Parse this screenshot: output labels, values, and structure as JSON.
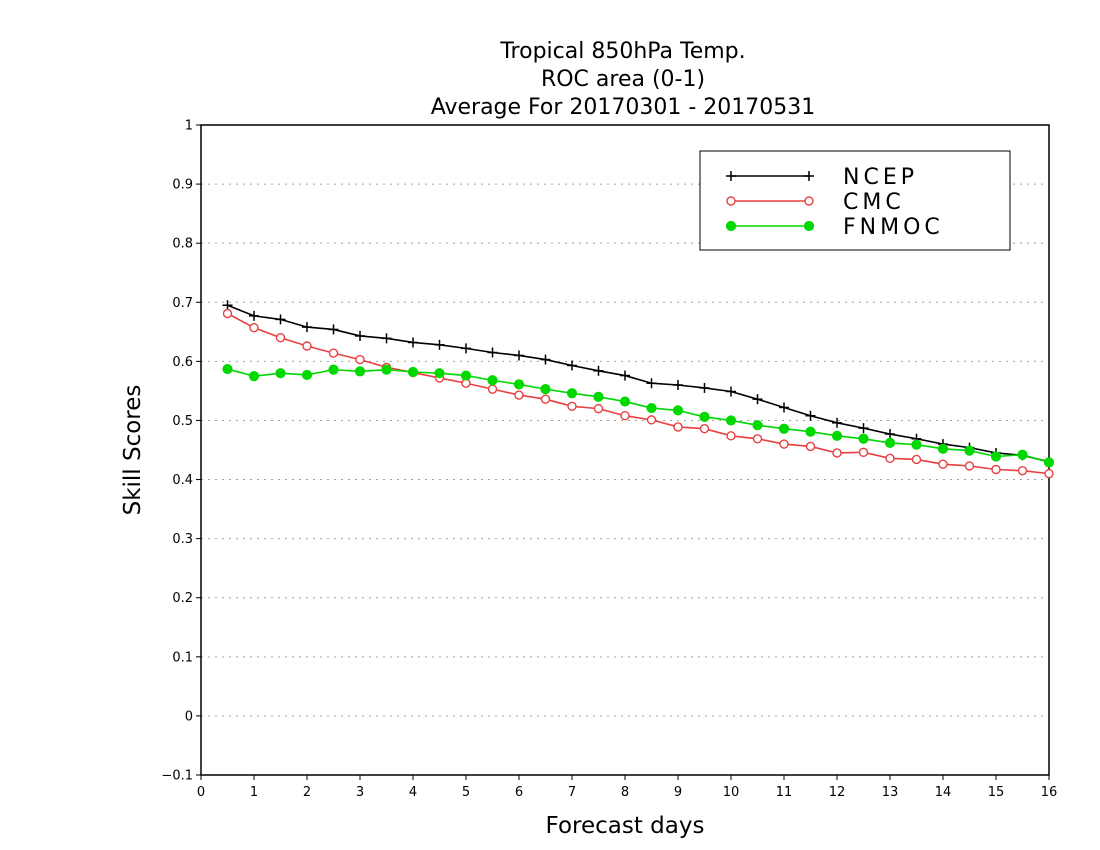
{
  "chart_data": {
    "type": "line",
    "title_lines": [
      "Tropical 850hPa Temp.",
      "ROC area (0-1)",
      "Average For 20170301 - 20170531"
    ],
    "xlabel": "Forecast days",
    "ylabel": "Skill Scores",
    "xlim": [
      0,
      16
    ],
    "ylim": [
      -0.1,
      1
    ],
    "x_ticks": [
      "0",
      "1",
      "2",
      "3",
      "4",
      "5",
      "6",
      "7",
      "8",
      "9",
      "10",
      "11",
      "12",
      "13",
      "14",
      "15",
      "16"
    ],
    "y_ticks": [
      "−0.1",
      "0",
      "0.1",
      "0.2",
      "0.3",
      "0.4",
      "0.5",
      "0.6",
      "0.7",
      "0.8",
      "0.9",
      "1"
    ],
    "y_tick_values": [
      -0.1,
      0,
      0.1,
      0.2,
      0.3,
      0.4,
      0.5,
      0.6,
      0.7,
      0.8,
      0.9,
      1
    ],
    "grid": "horizontal dotted",
    "legend_position": "top-right",
    "x": [
      0.5,
      1,
      1.5,
      2,
      2.5,
      3,
      3.5,
      4,
      4.5,
      5,
      5.5,
      6,
      6.5,
      7,
      7.5,
      8,
      8.5,
      9,
      9.5,
      10,
      10.5,
      11,
      11.5,
      12,
      12.5,
      13,
      13.5,
      14,
      14.5,
      15,
      15.5,
      16
    ],
    "series": [
      {
        "name": "NCEP",
        "color": "#000000",
        "marker": "plus",
        "values": [
          0.695,
          0.677,
          0.671,
          0.658,
          0.654,
          0.643,
          0.639,
          0.632,
          0.628,
          0.622,
          0.615,
          0.61,
          0.603,
          0.593,
          0.584,
          0.576,
          0.563,
          0.56,
          0.555,
          0.549,
          0.536,
          0.522,
          0.508,
          0.496,
          0.487,
          0.477,
          0.469,
          0.46,
          0.454,
          0.445,
          0.441,
          0.43
        ]
      },
      {
        "name": "CMC",
        "color": "#e84040",
        "marker": "open-circle",
        "values": [
          0.681,
          0.657,
          0.64,
          0.626,
          0.614,
          0.603,
          0.59,
          0.581,
          0.572,
          0.563,
          0.553,
          0.543,
          0.536,
          0.524,
          0.52,
          0.508,
          0.501,
          0.489,
          0.486,
          0.474,
          0.469,
          0.46,
          0.456,
          0.445,
          0.446,
          0.436,
          0.434,
          0.426,
          0.423,
          0.417,
          0.415,
          0.41
        ]
      },
      {
        "name": "FNMOC",
        "color": "#00d800",
        "marker": "filled-circle",
        "values": [
          0.587,
          0.575,
          0.58,
          0.577,
          0.586,
          0.583,
          0.586,
          0.582,
          0.58,
          0.576,
          0.568,
          0.561,
          0.553,
          0.546,
          0.54,
          0.532,
          0.521,
          0.517,
          0.506,
          0.5,
          0.492,
          0.486,
          0.481,
          0.474,
          0.469,
          0.462,
          0.459,
          0.452,
          0.449,
          0.439,
          0.442,
          0.429
        ]
      }
    ]
  }
}
